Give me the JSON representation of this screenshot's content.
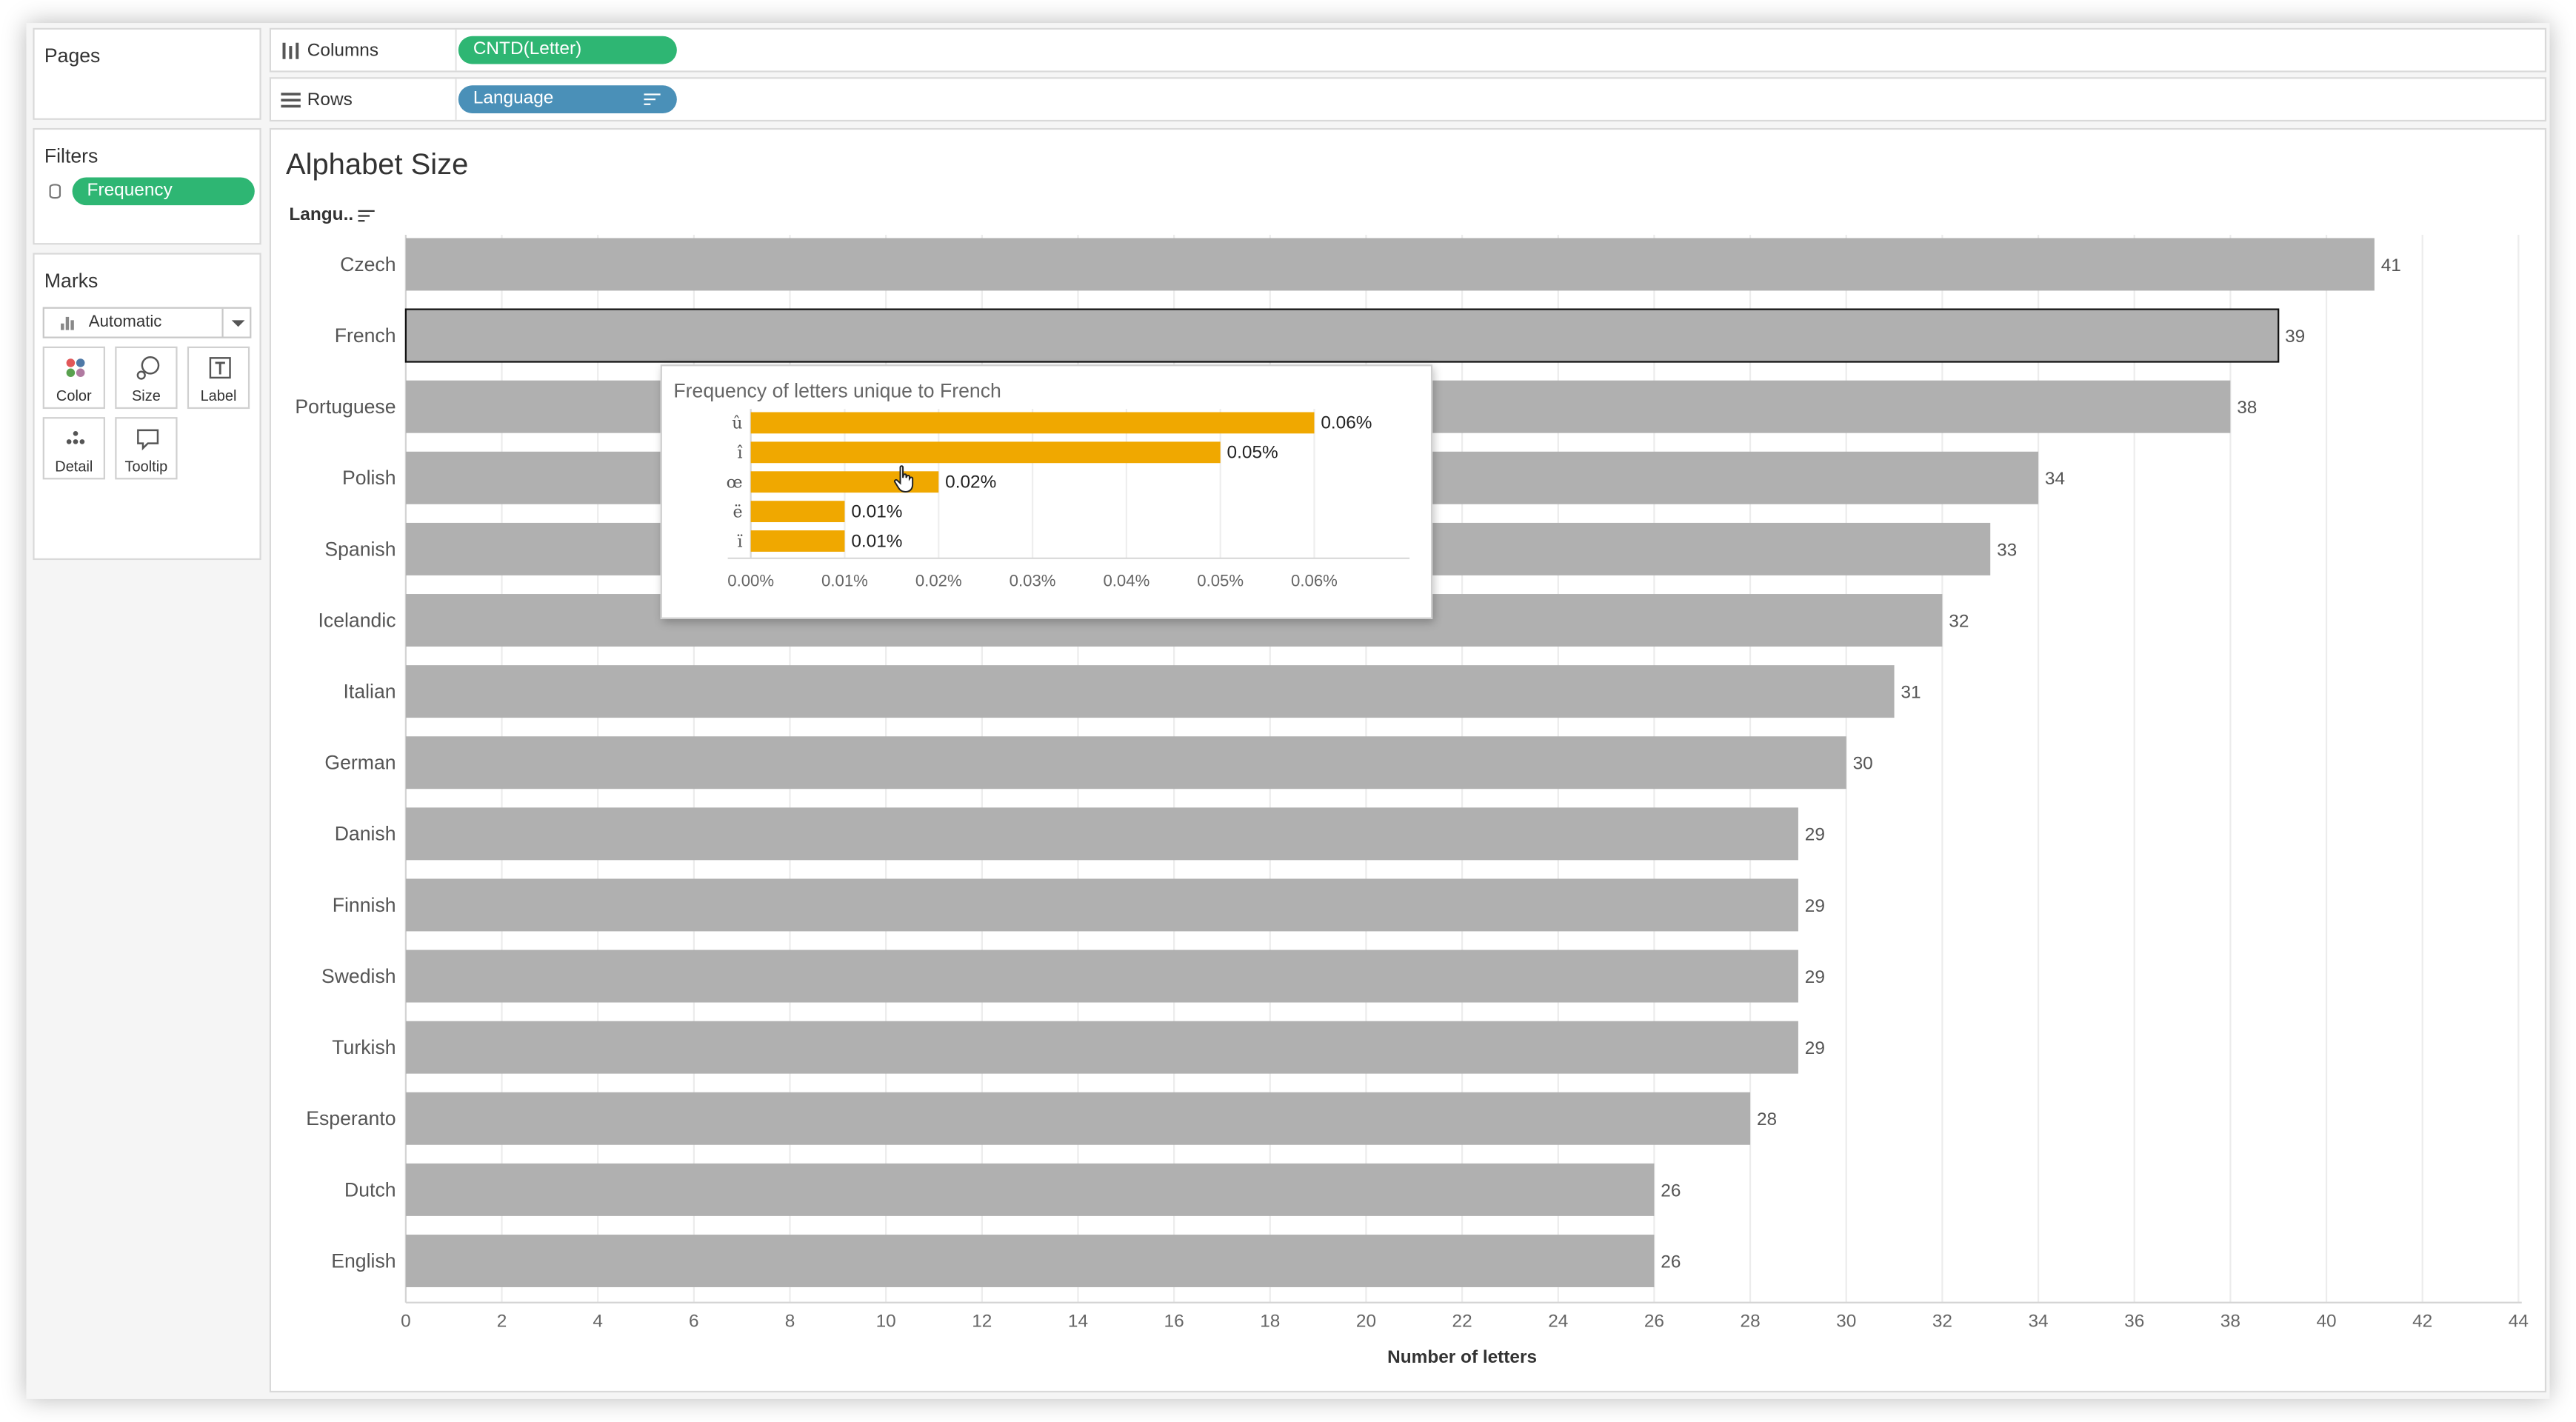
{
  "shelves": {
    "columns_label": "Columns",
    "columns_pill": "CNTD(Letter)",
    "rows_label": "Rows",
    "rows_pill": "Language"
  },
  "cards": {
    "pages_title": "Pages",
    "filters_title": "Filters",
    "filter_pill": "Frequency",
    "marks_title": "Marks",
    "mark_type": "Automatic",
    "mark_buttons": [
      "Color",
      "Size",
      "Label",
      "Detail",
      "Tooltip"
    ]
  },
  "view": {
    "sheet_title": "Alphabet Size",
    "row_header": "Langu..",
    "colors": {
      "bar": "#b0b0b0",
      "pill_green": "#2eb673",
      "pill_blue": "#4a90b8",
      "tooltip_bar": "#f0a800"
    }
  },
  "chart_data": [
    {
      "type": "bar",
      "orientation": "horizontal",
      "categories": [
        "Czech",
        "French",
        "Portuguese",
        "Polish",
        "Spanish",
        "Icelandic",
        "Italian",
        "German",
        "Danish",
        "Finnish",
        "Swedish",
        "Turkish",
        "Esperanto",
        "Dutch",
        "English"
      ],
      "values": [
        41,
        39,
        38,
        34,
        33,
        32,
        31,
        30,
        29,
        29,
        29,
        29,
        28,
        26,
        26
      ],
      "title": "Alphabet Size",
      "xlabel": "Number of letters",
      "ylabel": "Langu..",
      "xlim": [
        0,
        44
      ],
      "xticks": [
        "0",
        "2",
        "4",
        "6",
        "8",
        "10",
        "12",
        "14",
        "16",
        "18",
        "20",
        "22",
        "24",
        "26",
        "28",
        "30",
        "32",
        "34",
        "36",
        "38",
        "40",
        "42",
        "44"
      ],
      "grid": true,
      "highlighted_category": "French"
    },
    {
      "type": "bar",
      "orientation": "horizontal",
      "title": "Frequency of letters unique to French",
      "categories": [
        "û",
        "î",
        "œ",
        "ë",
        "ï"
      ],
      "values": [
        0.06,
        0.05,
        0.02,
        0.01,
        0.01
      ],
      "value_labels": [
        "0.06%",
        "0.05%",
        "0.02%",
        "0.01%",
        "0.01%"
      ],
      "xlim": [
        0,
        0.07
      ],
      "xticks": [
        "0.00%",
        "0.01%",
        "0.02%",
        "0.03%",
        "0.04%",
        "0.05%",
        "0.06%"
      ],
      "grid": true
    }
  ]
}
